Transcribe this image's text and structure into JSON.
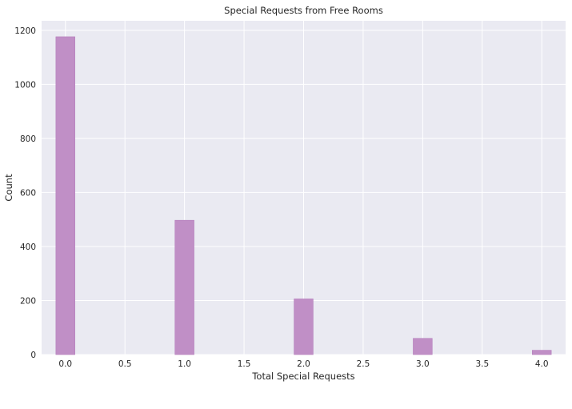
{
  "chart_data": {
    "type": "bar",
    "title": "Special Requests from Free Rooms",
    "xlabel": "Total Special Requests",
    "ylabel": "Count",
    "x": [
      0,
      1,
      2,
      3,
      4
    ],
    "values": [
      1176,
      497,
      206,
      60,
      16
    ],
    "xlim": [
      -0.2,
      4.2
    ],
    "ylim": [
      0,
      1235
    ],
    "xticks": [
      "0.0",
      "0.5",
      "1.0",
      "1.5",
      "2.0",
      "2.5",
      "3.0",
      "3.5",
      "4.0"
    ],
    "yticks": [
      "0",
      "200",
      "400",
      "600",
      "800",
      "1000",
      "1200"
    ],
    "bar_color": "#c08fc6",
    "bar_edge_color": "#b67fbd",
    "background": "#eaeaf2",
    "grid": true,
    "grid_color": "#ffffff"
  }
}
